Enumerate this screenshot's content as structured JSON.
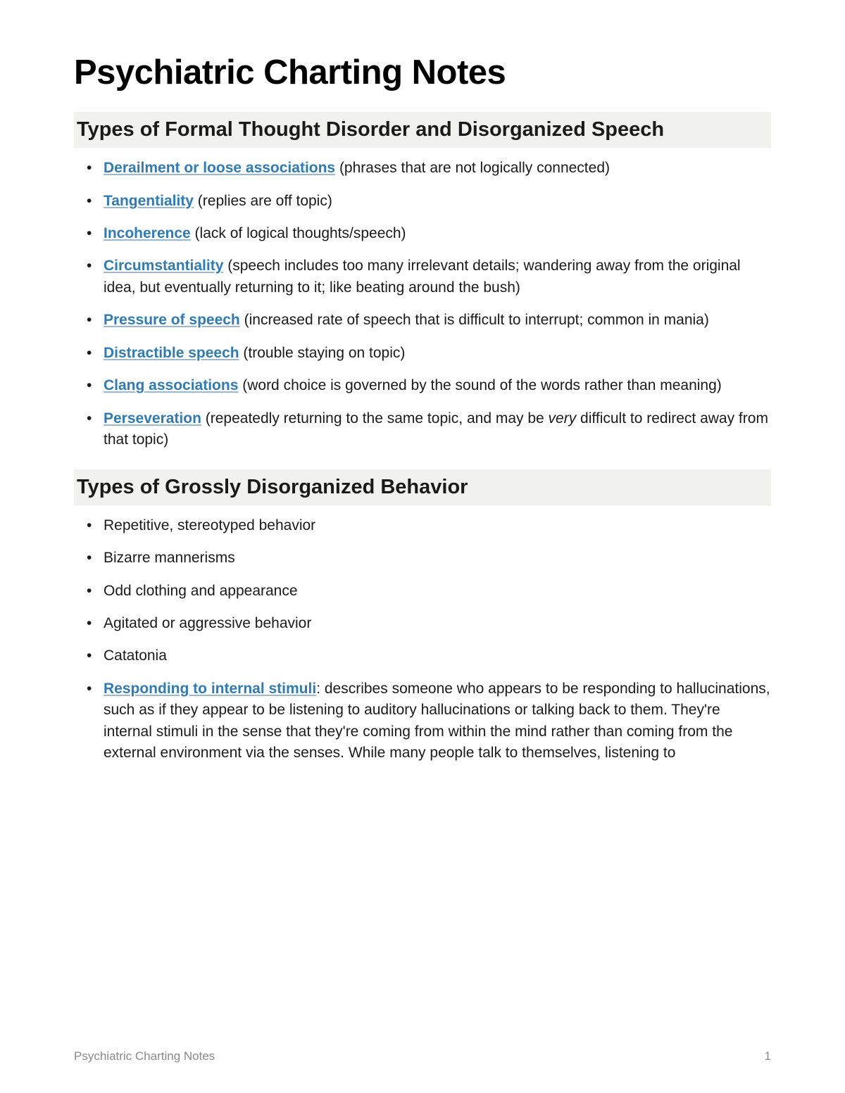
{
  "title": "Psychiatric Charting Notes",
  "section1": {
    "heading": "Types of Formal Thought Disorder and Disorganized Speech",
    "items": [
      {
        "term": "Derailment or loose associations",
        "desc": " (phrases that are not logically connected)"
      },
      {
        "term": "Tangentiality",
        "desc": " (replies are off topic)"
      },
      {
        "term": "Incoherence",
        "desc": " (lack of logical thoughts/speech)"
      },
      {
        "term": "Circumstantiality",
        "desc": " (speech includes too many irrelevant details; wandering away from the original idea, but eventually returning to it; like beating around the bush)"
      },
      {
        "term": "Pressure of speech",
        "desc": " (increased rate of speech that is difficult to interrupt; common in mania)"
      },
      {
        "term": "Distractible speech",
        "desc": " (trouble staying on topic)"
      },
      {
        "term": "Clang associations",
        "desc": " (word choice is governed by the sound of the words rather than meaning)"
      },
      {
        "term": "Perseveration",
        "desc_before": " (repeatedly returning to the same topic, and may be ",
        "desc_em": "very",
        "desc_after": " difficult to redirect away from that topic)"
      }
    ]
  },
  "section2": {
    "heading": "Types of Grossly Disorganized Behavior",
    "items": [
      {
        "text": "Repetitive, stereotyped behavior"
      },
      {
        "text": "Bizarre mannerisms"
      },
      {
        "text": "Odd clothing and appearance"
      },
      {
        "text": "Agitated or aggressive behavior"
      },
      {
        "text": "Catatonia"
      },
      {
        "term": "Responding to internal stimuli",
        "desc": ": describes someone who appears to be responding to hallucinations, such as if they appear to be listening to auditory hallucinations or talking back to them. They're internal stimuli in the sense that they're coming from within the mind rather than coming from the external environment via the senses. While many people talk to themselves, listening to"
      }
    ]
  },
  "footer": {
    "title": "Psychiatric Charting Notes",
    "page": "1"
  },
  "colors": {
    "link": "#2f7bb5",
    "heading_bg": "#f1f1ef",
    "text": "#1a1a1a",
    "footer_text": "#8a8a86",
    "background": "#ffffff"
  },
  "typography": {
    "h1_size": 49,
    "h2_size": 29,
    "body_size": 21,
    "footer_size": 17
  }
}
